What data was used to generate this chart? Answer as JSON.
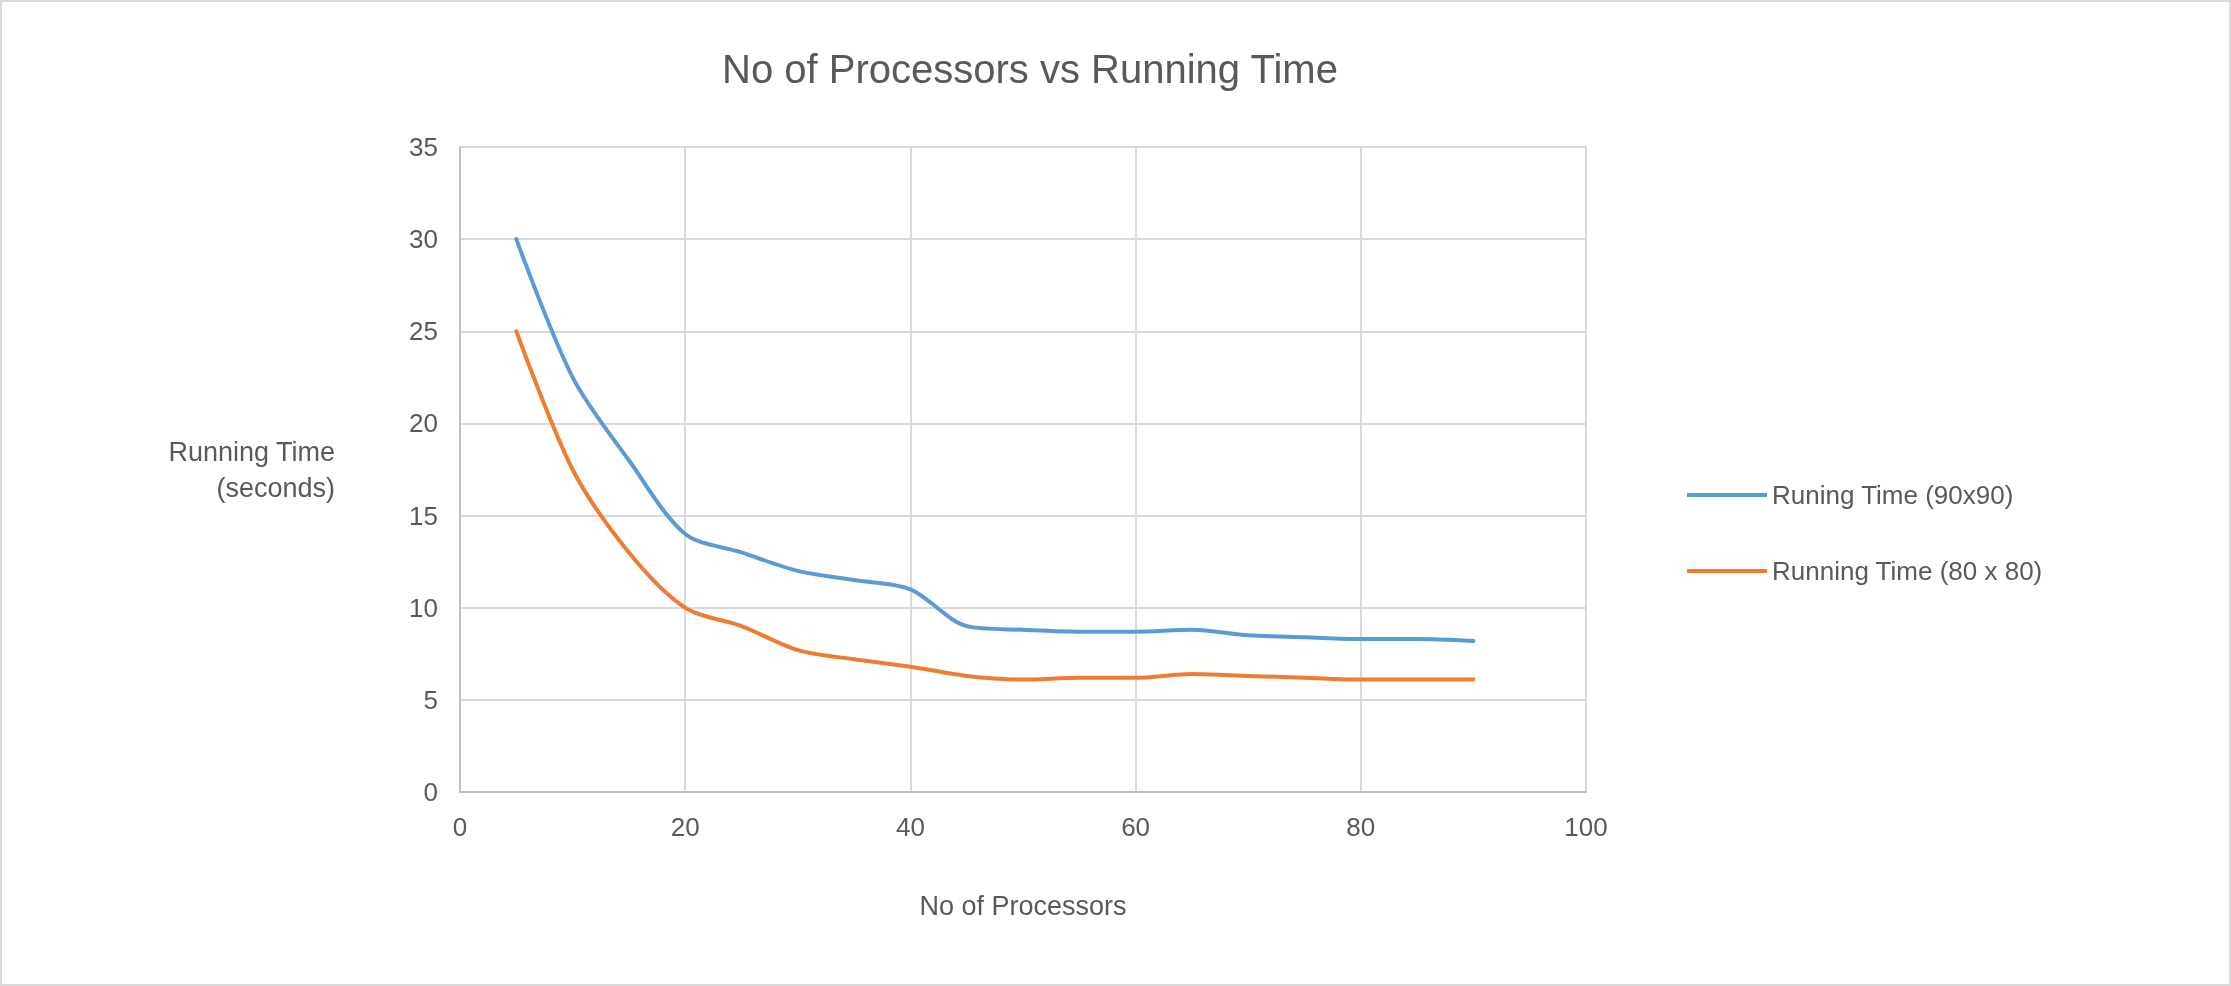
{
  "chart_data": {
    "type": "line",
    "title": "No of Processors vs Running Time",
    "xlabel": "No of Processors",
    "ylabel": "Running Time\n(seconds)",
    "x": [
      5,
      10,
      15,
      20,
      25,
      30,
      35,
      40,
      45,
      50,
      55,
      60,
      65,
      70,
      75,
      80,
      85,
      90
    ],
    "series": [
      {
        "name": "Runing Time (90x90)",
        "color": "#5b9bd5",
        "values": [
          30,
          22.5,
          18,
          14,
          13,
          12,
          11.5,
          11,
          9,
          8.8,
          8.7,
          8.7,
          8.8,
          8.5,
          8.4,
          8.3,
          8.3,
          8.2
        ]
      },
      {
        "name": "Running Time (80 x 80)",
        "color": "#ed7d31",
        "values": [
          25,
          17.5,
          13,
          10,
          9,
          7.7,
          7.2,
          6.8,
          6.3,
          6.1,
          6.2,
          6.2,
          6.4,
          6.3,
          6.2,
          6.1,
          6.1,
          6.1
        ]
      }
    ],
    "xlim": [
      0,
      100
    ],
    "xticks": [
      0,
      20,
      40,
      60,
      80,
      100
    ],
    "ylim": [
      0,
      35
    ],
    "yticks": [
      0,
      5,
      10,
      15,
      20,
      25,
      30,
      35
    ],
    "grid": true,
    "legend": "right",
    "marker": "none",
    "line_style": "solid"
  }
}
